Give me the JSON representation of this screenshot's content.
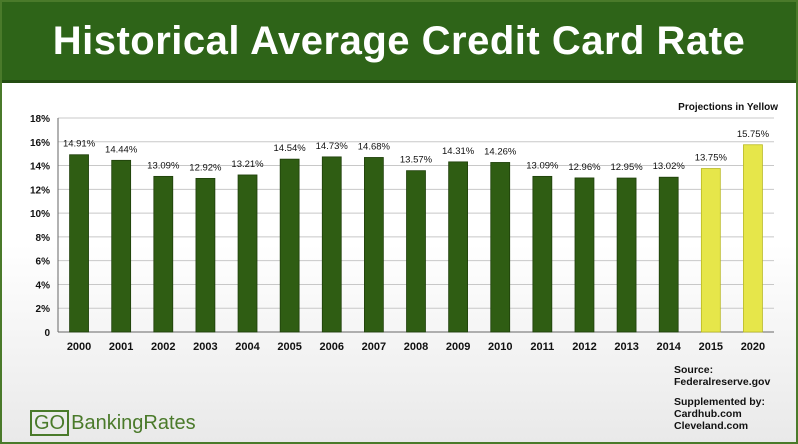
{
  "title": "Historical Average Credit Card Rate",
  "projection_note": "Projections in Yellow",
  "source": {
    "label": "Source:",
    "line1": "Federalreserve.gov"
  },
  "supplemented": {
    "label": "Supplemented by:",
    "line1": "Cardhub.com",
    "line2": "Cleveland.com"
  },
  "logo": {
    "part1": "GO",
    "part2": "BankingRates"
  },
  "colors": {
    "historical": "#2f5d13",
    "projection": "#e6e64a",
    "title_bg": "#2e6418"
  },
  "chart_data": {
    "type": "bar",
    "categories": [
      "2000",
      "2001",
      "2002",
      "2003",
      "2004",
      "2005",
      "2006",
      "2007",
      "2008",
      "2009",
      "2010",
      "2011",
      "2012",
      "2013",
      "2014",
      "2015",
      "2020"
    ],
    "values": [
      14.91,
      14.44,
      13.09,
      12.92,
      13.21,
      14.54,
      14.73,
      14.68,
      13.57,
      14.31,
      14.26,
      13.09,
      12.96,
      12.95,
      13.02,
      13.75,
      15.75
    ],
    "data_labels": [
      "14.91%",
      "14.44%",
      "13.09%",
      "12.92%",
      "13.21%",
      "14.54%",
      "14.73%",
      "14.68%",
      "13.57%",
      "14.31%",
      "14.26%",
      "13.09%",
      "12.96%",
      "12.95%",
      "13.02%",
      "13.75%",
      "15.75%"
    ],
    "projected": [
      false,
      false,
      false,
      false,
      false,
      false,
      false,
      false,
      false,
      false,
      false,
      false,
      false,
      false,
      false,
      true,
      true
    ],
    "ylim": [
      0,
      18
    ],
    "yticks": [
      0,
      2,
      4,
      6,
      8,
      10,
      12,
      14,
      16,
      18
    ],
    "ytick_labels": [
      "0",
      "2%",
      "4%",
      "6%",
      "8%",
      "10%",
      "12%",
      "14%",
      "16%",
      "18%"
    ],
    "grid": true,
    "legend": "none"
  }
}
